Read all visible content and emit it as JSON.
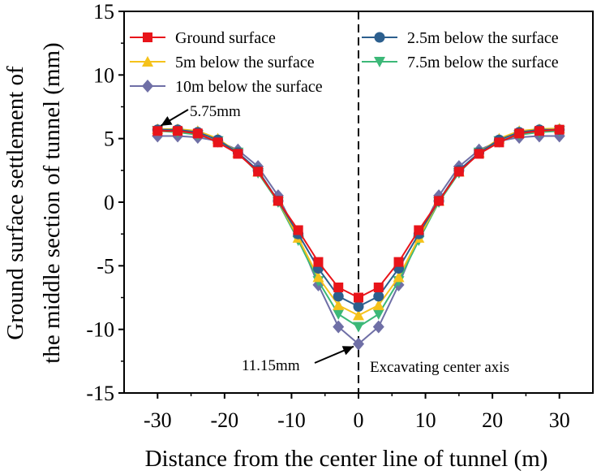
{
  "chart_data": {
    "type": "line",
    "title": "",
    "xlabel": "Distance from the center line of tunnel (m)",
    "ylabel_line1": "Ground surface settlement of",
    "ylabel_line2": "the  middle section of tunnel (mm)",
    "xlim": [
      -35,
      35
    ],
    "ylim": [
      -15,
      15
    ],
    "xticks": [
      -30,
      -20,
      -10,
      0,
      10,
      20,
      30
    ],
    "yticks": [
      -15,
      -10,
      -5,
      0,
      5,
      10,
      15
    ],
    "x": [
      -30,
      -27,
      -24,
      -21,
      -18,
      -15,
      -12,
      -9,
      -6,
      -3,
      0,
      3,
      6,
      9,
      12,
      15,
      18,
      21,
      24,
      27,
      30
    ],
    "series": [
      {
        "name": "Ground surface",
        "color": "#e8141a",
        "marker": "square",
        "values": [
          5.6,
          5.6,
          5.4,
          4.7,
          3.8,
          2.4,
          0.1,
          -2.2,
          -4.7,
          -6.7,
          -7.5,
          -6.7,
          -4.7,
          -2.2,
          0.1,
          2.4,
          3.8,
          4.7,
          5.4,
          5.6,
          5.7
        ]
      },
      {
        "name": "2.5m below the surface",
        "color": "#2c5f8e",
        "marker": "circle",
        "values": [
          5.7,
          5.7,
          5.5,
          4.9,
          3.9,
          2.5,
          0.1,
          -2.5,
          -5.2,
          -7.4,
          -8.2,
          -7.4,
          -5.2,
          -2.5,
          0.1,
          2.5,
          3.9,
          4.9,
          5.5,
          5.7,
          5.7
        ]
      },
      {
        "name": "5m below the surface",
        "color": "#f5c21b",
        "marker": "triangle-up",
        "values": [
          5.75,
          5.75,
          5.6,
          5.0,
          3.9,
          2.4,
          0.1,
          -2.8,
          -5.9,
          -8.1,
          -8.9,
          -8.1,
          -5.9,
          -2.8,
          0.1,
          2.4,
          3.9,
          5.0,
          5.6,
          5.75,
          5.8
        ]
      },
      {
        "name": "7.5m below the surface",
        "color": "#3cb878",
        "marker": "triangle-down",
        "values": [
          5.6,
          5.5,
          5.3,
          4.8,
          3.9,
          2.3,
          0.0,
          -3.0,
          -6.2,
          -8.8,
          -9.8,
          -8.8,
          -6.2,
          -3.0,
          0.0,
          2.3,
          3.9,
          4.8,
          5.3,
          5.5,
          5.6
        ]
      },
      {
        "name": "10m below the surface",
        "color": "#6f6fa6",
        "marker": "diamond",
        "values": [
          5.2,
          5.2,
          5.1,
          4.8,
          4.1,
          2.8,
          0.5,
          -2.7,
          -6.5,
          -9.8,
          -11.15,
          -9.8,
          -6.5,
          -2.7,
          0.5,
          2.8,
          4.1,
          4.8,
          5.1,
          5.2,
          5.2
        ]
      }
    ],
    "annotations": {
      "max_label": "5.75mm",
      "min_label": "11.15mm",
      "axis_label": "Excavating center axis"
    }
  }
}
